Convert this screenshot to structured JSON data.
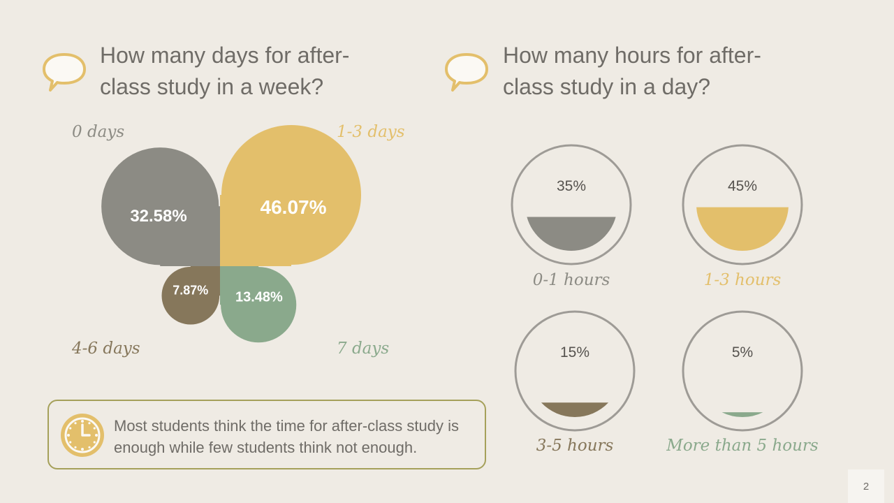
{
  "left": {
    "title": "How many days for after-\nclass study in a week?"
  },
  "right": {
    "title": "How many hours for after-\nclass study in a day?"
  },
  "note": {
    "text": "Most students think the time for after-class study is enough while few students think not enough."
  },
  "page_number": "2",
  "colors": {
    "background": "#efebe4",
    "gray": "#8c8b84",
    "yellow": "#e3bf6b",
    "brown": "#86775b",
    "green": "#8aa98c",
    "text": "#6f6c67"
  },
  "chart_data": [
    {
      "type": "pie",
      "categories": [
        "0 days",
        "1-3 days",
        "4-6 days",
        "7 days"
      ],
      "values": [
        32.58,
        46.07,
        7.87,
        13.48
      ],
      "labels": [
        "32.58%",
        "46.07%",
        "7.87%",
        "13.48%"
      ],
      "colors": [
        "#8c8b84",
        "#e3bf6b",
        "#86775b",
        "#8aa98c"
      ]
    },
    {
      "type": "bar",
      "categories": [
        "0-1 hours",
        "1-3 hours",
        "3-5 hours",
        "More than 5 hours"
      ],
      "values": [
        35,
        45,
        15,
        5
      ],
      "labels": [
        "35%",
        "45%",
        "15%",
        "5%"
      ],
      "colors": [
        "#8c8b84",
        "#e3bf6b",
        "#86775b",
        "#8aa98c"
      ]
    }
  ]
}
